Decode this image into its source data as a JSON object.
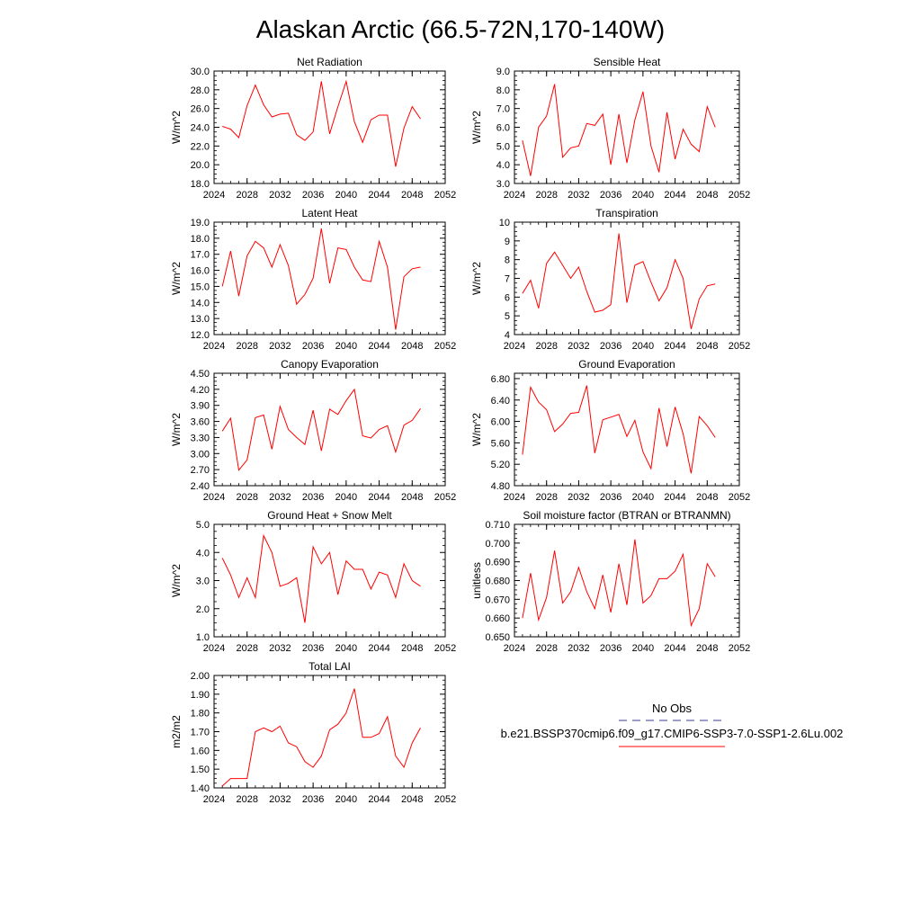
{
  "title": "Alaskan Arctic (66.5-72N,170-140W)",
  "legend": {
    "obs_label": "No Obs",
    "obs_color": "#3b3b8f",
    "model_label": "b.e21.BSSP370cmip6.f09_g17.CMIP6-SSP3-7.0-SSP1-2.6Lu.002",
    "model_color": "#ff0000"
  },
  "chart_data": [
    {
      "type": "line",
      "title": "Net Radiation",
      "ylabel": "W/m^2",
      "xlim": [
        2024,
        2052
      ],
      "ylim": [
        18.0,
        30.0
      ],
      "xticks": [
        "2024",
        "2028",
        "2032",
        "2036",
        "2040",
        "2044",
        "2048",
        "2052"
      ],
      "yticks": [
        "18.0",
        "20.0",
        "22.0",
        "24.0",
        "26.0",
        "28.0",
        "30.0"
      ],
      "x": [
        2025,
        2026,
        2027,
        2028,
        2029,
        2030,
        2031,
        2032,
        2033,
        2034,
        2035,
        2036,
        2037,
        2038,
        2039,
        2040,
        2041,
        2042,
        2043,
        2044,
        2045,
        2046,
        2047,
        2048,
        2049
      ],
      "series": [
        {
          "values": [
            24.1,
            23.8,
            22.9,
            26.3,
            28.5,
            26.4,
            25.1,
            25.4,
            25.5,
            23.2,
            22.6,
            23.5,
            28.9,
            23.3,
            26.2,
            28.9,
            24.6,
            22.4,
            24.8,
            25.3,
            25.3,
            19.8,
            23.9,
            26.2,
            24.9
          ]
        }
      ]
    },
    {
      "type": "line",
      "title": "Sensible Heat",
      "ylabel": "W/m^2",
      "xlim": [
        2024,
        2052
      ],
      "ylim": [
        3.0,
        9.0
      ],
      "xticks": [
        "2024",
        "2028",
        "2032",
        "2036",
        "2040",
        "2044",
        "2048",
        "2052"
      ],
      "yticks": [
        "3.0",
        "4.0",
        "5.0",
        "6.0",
        "7.0",
        "8.0",
        "9.0"
      ],
      "x": [
        2025,
        2026,
        2027,
        2028,
        2029,
        2030,
        2031,
        2032,
        2033,
        2034,
        2035,
        2036,
        2037,
        2038,
        2039,
        2040,
        2041,
        2042,
        2043,
        2044,
        2045,
        2046,
        2047,
        2048,
        2049
      ],
      "series": [
        {
          "values": [
            5.3,
            3.4,
            6.0,
            6.6,
            8.3,
            4.4,
            4.9,
            5.0,
            6.2,
            6.1,
            6.7,
            4.0,
            6.7,
            4.1,
            6.4,
            7.9,
            5.0,
            3.6,
            6.8,
            4.3,
            5.9,
            5.1,
            4.7,
            7.1,
            6.0
          ]
        }
      ]
    },
    {
      "type": "line",
      "title": "Latent Heat",
      "ylabel": "W/m^2",
      "xlim": [
        2024,
        2052
      ],
      "ylim": [
        12.0,
        19.0
      ],
      "xticks": [
        "2024",
        "2028",
        "2032",
        "2036",
        "2040",
        "2044",
        "2048",
        "2052"
      ],
      "yticks": [
        "12.0",
        "13.0",
        "14.0",
        "15.0",
        "16.0",
        "17.0",
        "18.0",
        "19.0"
      ],
      "x": [
        2025,
        2026,
        2027,
        2028,
        2029,
        2030,
        2031,
        2032,
        2033,
        2034,
        2035,
        2036,
        2037,
        2038,
        2039,
        2040,
        2041,
        2042,
        2043,
        2044,
        2045,
        2046,
        2047,
        2048,
        2049
      ],
      "series": [
        {
          "values": [
            15.0,
            17.2,
            14.4,
            16.9,
            17.8,
            17.4,
            16.2,
            17.6,
            16.3,
            13.9,
            14.5,
            15.5,
            18.6,
            15.2,
            17.4,
            17.3,
            16.2,
            15.4,
            15.3,
            17.8,
            16.2,
            12.3,
            15.6,
            16.1,
            16.2
          ]
        }
      ]
    },
    {
      "type": "line",
      "title": "Transpiration",
      "ylabel": "W/m^2",
      "xlim": [
        2024,
        2052
      ],
      "ylim": [
        4,
        10
      ],
      "xticks": [
        "2024",
        "2028",
        "2032",
        "2036",
        "2040",
        "2044",
        "2048",
        "2052"
      ],
      "yticks": [
        "4",
        "5",
        "6",
        "7",
        "8",
        "9",
        "10"
      ],
      "x": [
        2025,
        2026,
        2027,
        2028,
        2029,
        2030,
        2031,
        2032,
        2033,
        2034,
        2035,
        2036,
        2037,
        2038,
        2039,
        2040,
        2041,
        2042,
        2043,
        2044,
        2045,
        2046,
        2047,
        2048,
        2049
      ],
      "series": [
        {
          "values": [
            6.2,
            6.9,
            5.4,
            7.8,
            8.4,
            7.7,
            7.0,
            7.6,
            6.3,
            5.2,
            5.3,
            5.6,
            9.4,
            5.7,
            7.7,
            7.9,
            6.8,
            5.8,
            6.5,
            8.0,
            7.0,
            4.3,
            5.9,
            6.6,
            6.7
          ]
        }
      ]
    },
    {
      "type": "line",
      "title": "Canopy Evaporation",
      "ylabel": "W/m^2",
      "xlim": [
        2024,
        2052
      ],
      "ylim": [
        2.4,
        4.5
      ],
      "xticks": [
        "2024",
        "2028",
        "2032",
        "2036",
        "2040",
        "2044",
        "2048",
        "2052"
      ],
      "yticks": [
        "2.40",
        "2.70",
        "3.00",
        "3.30",
        "3.60",
        "3.90",
        "4.20",
        "4.50"
      ],
      "x": [
        2025,
        2026,
        2027,
        2028,
        2029,
        2030,
        2031,
        2032,
        2033,
        2034,
        2035,
        2036,
        2037,
        2038,
        2039,
        2040,
        2041,
        2042,
        2043,
        2044,
        2045,
        2046,
        2047,
        2048,
        2049
      ],
      "series": [
        {
          "values": [
            3.42,
            3.66,
            2.69,
            2.88,
            3.67,
            3.72,
            3.08,
            3.88,
            3.45,
            3.3,
            3.17,
            3.81,
            3.05,
            3.83,
            3.73,
            3.99,
            4.2,
            3.33,
            3.29,
            3.45,
            3.52,
            3.03,
            3.53,
            3.62,
            3.84
          ]
        }
      ]
    },
    {
      "type": "line",
      "title": "Ground Evaporation",
      "ylabel": "W/m^2",
      "xlim": [
        2024,
        2052
      ],
      "ylim": [
        4.8,
        6.9
      ],
      "xticks": [
        "2024",
        "2028",
        "2032",
        "2036",
        "2040",
        "2044",
        "2048",
        "2052"
      ],
      "yticks": [
        "4.80",
        "5.20",
        "5.60",
        "6.00",
        "6.40",
        "6.80"
      ],
      "x": [
        2025,
        2026,
        2027,
        2028,
        2029,
        2030,
        2031,
        2032,
        2033,
        2034,
        2035,
        2036,
        2037,
        2038,
        2039,
        2040,
        2041,
        2042,
        2043,
        2044,
        2045,
        2046,
        2047,
        2048,
        2049
      ],
      "series": [
        {
          "values": [
            5.38,
            6.64,
            6.36,
            6.22,
            5.81,
            5.95,
            6.15,
            6.17,
            6.67,
            5.41,
            6.03,
            6.08,
            6.13,
            5.72,
            6.02,
            5.43,
            5.12,
            6.25,
            5.53,
            6.27,
            5.77,
            5.03,
            6.09,
            5.92,
            5.7
          ]
        }
      ]
    },
    {
      "type": "line",
      "title": "Ground Heat + Snow Melt",
      "ylabel": "W/m^2",
      "xlim": [
        2024,
        2052
      ],
      "ylim": [
        1.0,
        5.0
      ],
      "xticks": [
        "2024",
        "2028",
        "2032",
        "2036",
        "2040",
        "2044",
        "2048",
        "2052"
      ],
      "yticks": [
        "1.0",
        "2.0",
        "3.0",
        "4.0",
        "5.0"
      ],
      "x": [
        2025,
        2026,
        2027,
        2028,
        2029,
        2030,
        2031,
        2032,
        2033,
        2034,
        2035,
        2036,
        2037,
        2038,
        2039,
        2040,
        2041,
        2042,
        2043,
        2044,
        2045,
        2046,
        2047,
        2048,
        2049
      ],
      "series": [
        {
          "values": [
            3.8,
            3.2,
            2.4,
            3.1,
            2.4,
            4.6,
            4.0,
            2.8,
            2.9,
            3.1,
            1.5,
            4.2,
            3.6,
            4.0,
            2.5,
            3.7,
            3.4,
            3.4,
            2.7,
            3.3,
            3.2,
            2.4,
            3.6,
            3.0,
            2.8
          ]
        }
      ]
    },
    {
      "type": "line",
      "title": "Soil moisture factor (BTRAN or BTRANMN)",
      "ylabel": "unitless",
      "xlim": [
        2024,
        2052
      ],
      "ylim": [
        0.65,
        0.71
      ],
      "xticks": [
        "2024",
        "2028",
        "2032",
        "2036",
        "2040",
        "2044",
        "2048",
        "2052"
      ],
      "yticks": [
        "0.650",
        "0.660",
        "0.670",
        "0.680",
        "0.690",
        "0.700",
        "0.710"
      ],
      "x": [
        2025,
        2026,
        2027,
        2028,
        2029,
        2030,
        2031,
        2032,
        2033,
        2034,
        2035,
        2036,
        2037,
        2038,
        2039,
        2040,
        2041,
        2042,
        2043,
        2044,
        2045,
        2046,
        2047,
        2048,
        2049
      ],
      "series": [
        {
          "values": [
            0.66,
            0.684,
            0.659,
            0.671,
            0.696,
            0.668,
            0.674,
            0.687,
            0.674,
            0.665,
            0.683,
            0.663,
            0.689,
            0.667,
            0.702,
            0.668,
            0.672,
            0.681,
            0.681,
            0.685,
            0.694,
            0.656,
            0.665,
            0.689,
            0.682
          ]
        }
      ]
    },
    {
      "type": "line",
      "title": "Total LAI",
      "ylabel": "m2/m2",
      "xlim": [
        2024,
        2052
      ],
      "ylim": [
        1.4,
        2.0
      ],
      "xticks": [
        "2024",
        "2028",
        "2032",
        "2036",
        "2040",
        "2044",
        "2048",
        "2052"
      ],
      "yticks": [
        "1.40",
        "1.50",
        "1.60",
        "1.70",
        "1.80",
        "1.90",
        "2.00"
      ],
      "x": [
        2025,
        2026,
        2027,
        2028,
        2029,
        2030,
        2031,
        2032,
        2033,
        2034,
        2035,
        2036,
        2037,
        2038,
        2039,
        2040,
        2041,
        2042,
        2043,
        2044,
        2045,
        2046,
        2047,
        2048,
        2049
      ],
      "series": [
        {
          "values": [
            1.41,
            1.45,
            1.45,
            1.45,
            1.7,
            1.72,
            1.7,
            1.73,
            1.64,
            1.62,
            1.54,
            1.51,
            1.57,
            1.71,
            1.74,
            1.8,
            1.93,
            1.67,
            1.67,
            1.69,
            1.78,
            1.57,
            1.51,
            1.64,
            1.72
          ]
        }
      ]
    }
  ]
}
